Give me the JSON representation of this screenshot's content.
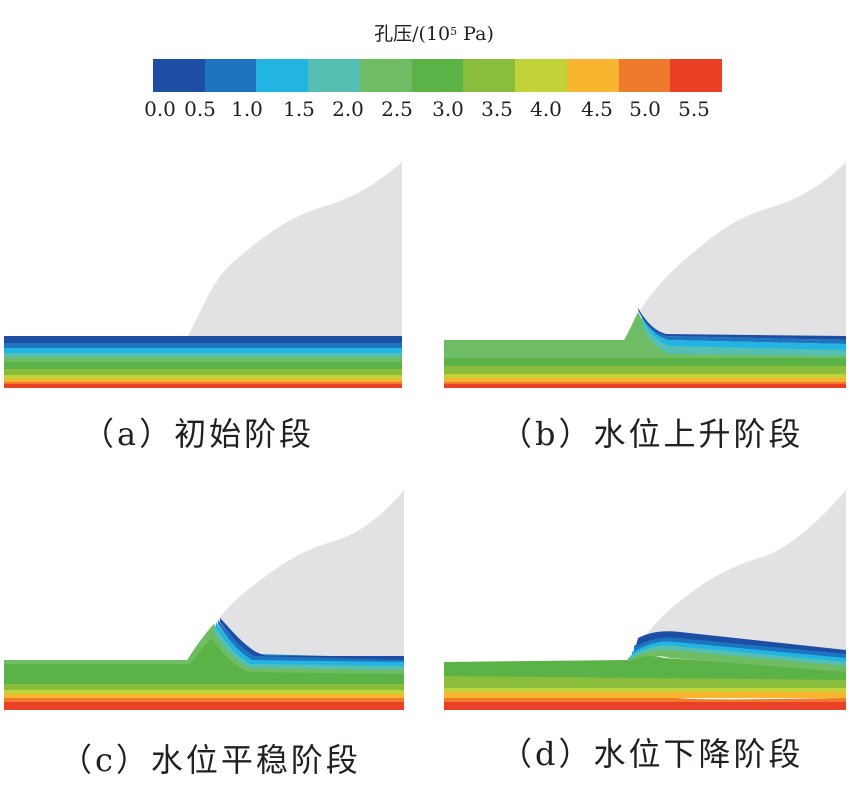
{
  "legend": {
    "title_main": "孔压/(10",
    "title_exp": "5",
    "title_unit": " Pa)",
    "ticks": [
      "0.0",
      "0.5",
      "1.0",
      "1.5",
      "2.0",
      "2.5",
      "3.0",
      "3.5",
      "4.0",
      "4.5",
      "5.0",
      "5.5"
    ],
    "colors": [
      "#1c4fa3",
      "#1f74bf",
      "#22b5e4",
      "#56bfb4",
      "#6ebc63",
      "#5bb347",
      "#8abd3c",
      "#c2d33a",
      "#f8b530",
      "#f07a2c",
      "#ea4126"
    ]
  },
  "panels": [
    {
      "caption": "（a）初始阶段"
    },
    {
      "caption": "（b）水位上升阶段"
    },
    {
      "caption": "（c）水位平稳阶段"
    },
    {
      "caption": "（d）水位下降阶段"
    }
  ],
  "colors": {
    "slope": "#e2e2e4",
    "contour_bands": [
      "#1c4fa3",
      "#1f74bf",
      "#22b5e4",
      "#56bfb4",
      "#6ebc63",
      "#5bb347",
      "#8abd3c",
      "#c2d33a",
      "#f8b530",
      "#f07a2c",
      "#ea4126"
    ]
  }
}
